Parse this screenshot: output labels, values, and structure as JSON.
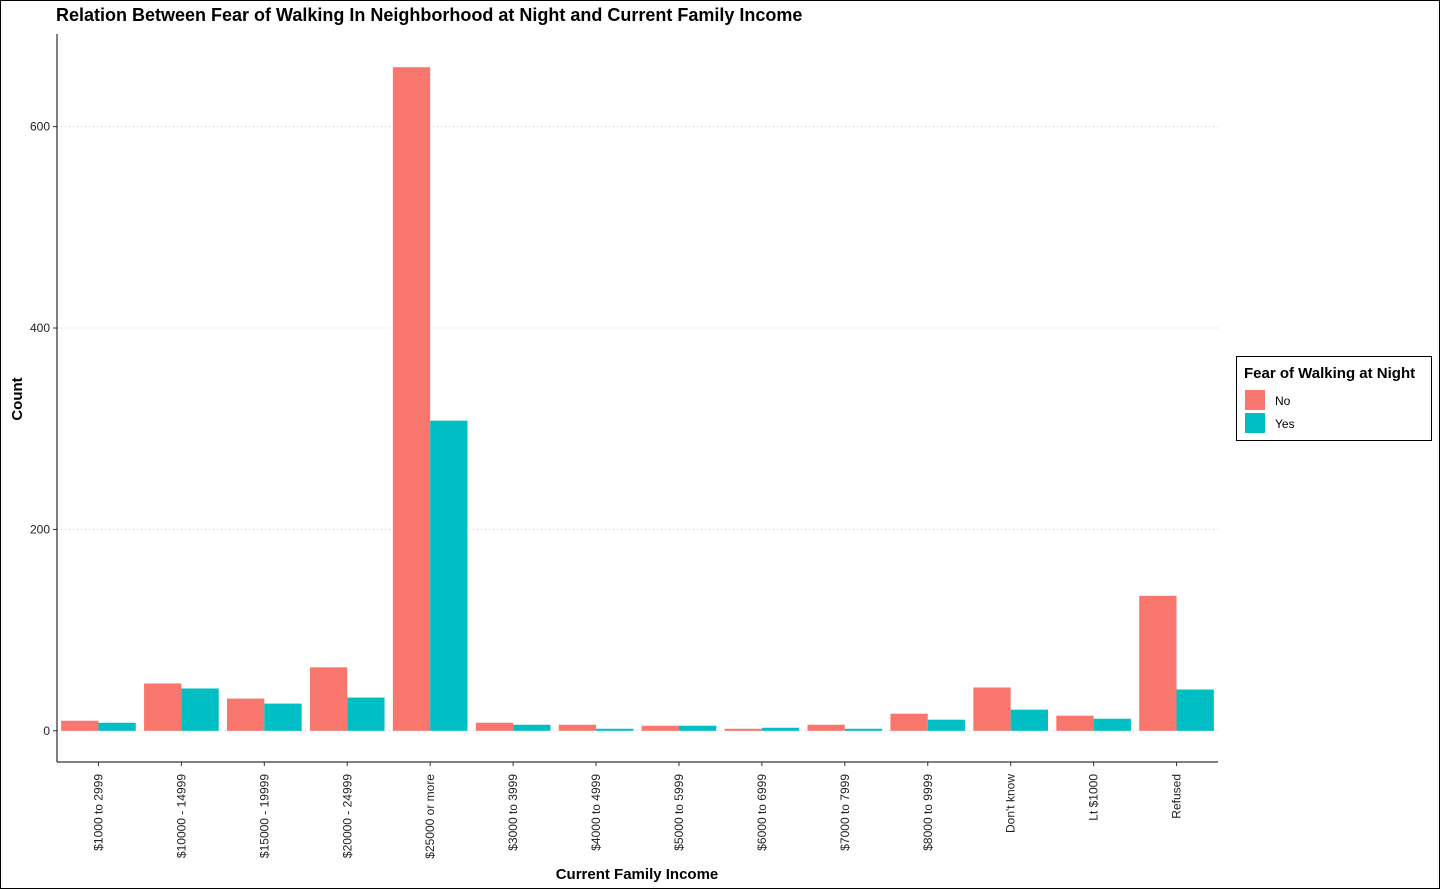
{
  "chart_data": {
    "type": "bar",
    "title": "Relation Between Fear of Walking In Neighborhood at Night and Current Family Income",
    "xlabel": "Current Family Income",
    "ylabel": "Count",
    "categories": [
      "$1000 to 2999",
      "$10000 - 14999",
      "$15000 - 19999",
      "$20000 - 24999",
      "$25000 or more",
      "$3000 to 3999",
      "$4000 to 4999",
      "$5000 to 5999",
      "$6000 to 6999",
      "$7000 to 7999",
      "$8000 to 9999",
      "Don't know",
      "Lt $1000",
      "Refused"
    ],
    "series": [
      {
        "name": "No",
        "color": "#F8766D",
        "values": [
          10,
          47,
          32,
          63,
          659,
          8,
          6,
          5,
          2,
          6,
          17,
          43,
          15,
          134
        ]
      },
      {
        "name": "Yes",
        "color": "#00BFC4",
        "values": [
          8,
          42,
          27,
          33,
          308,
          6,
          2,
          5,
          3,
          2,
          11,
          21,
          12,
          41
        ]
      }
    ],
    "ylim": [
      -31,
      692
    ],
    "yticks": [
      0,
      200,
      400,
      600
    ],
    "grid": "horizontal-dotted",
    "legend": {
      "title": "Fear of Walking at Night",
      "position": "right"
    }
  }
}
